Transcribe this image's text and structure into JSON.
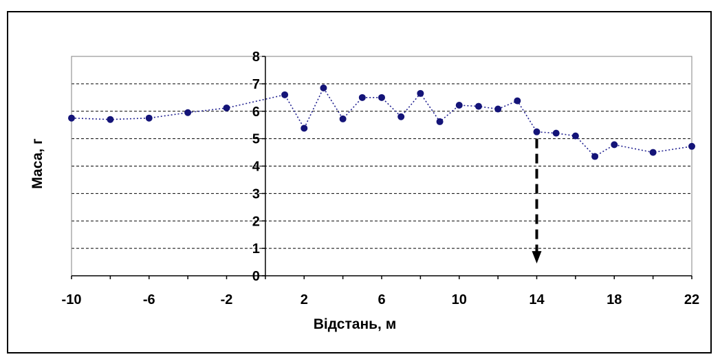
{
  "chart_data": {
    "type": "line",
    "title": "",
    "xlabel": "Відстань, м",
    "ylabel": "Маса, г",
    "xlim": [
      -10,
      22
    ],
    "ylim": [
      0,
      8
    ],
    "x_ticks": [
      -10,
      -6,
      -2,
      2,
      6,
      10,
      14,
      18,
      22
    ],
    "y_ticks": [
      0,
      1,
      2,
      3,
      4,
      5,
      6,
      7,
      8
    ],
    "grid": "horizontal dashed",
    "legend": "none",
    "colors": {
      "series": "#1f1f8f",
      "marker": "#141478",
      "grid": "#000000",
      "arrow": "#000000"
    },
    "series": [
      {
        "x": [
          -10,
          -8,
          -6,
          -4,
          -2,
          1,
          2,
          3,
          4,
          5,
          6,
          7,
          8,
          9,
          10,
          11,
          12,
          13,
          14,
          15,
          16,
          17,
          18,
          20,
          22
        ],
        "y": [
          5.75,
          5.7,
          5.75,
          5.95,
          6.12,
          6.6,
          5.38,
          6.85,
          5.72,
          6.5,
          6.5,
          5.8,
          6.65,
          5.62,
          6.22,
          6.18,
          6.08,
          6.38,
          5.25,
          5.2,
          5.1,
          4.35,
          4.78,
          4.5,
          4.72
        ]
      }
    ],
    "annotations": [
      {
        "type": "dashed-arrow",
        "x": 14,
        "y_from": 5.0,
        "y_to": 0.6
      }
    ]
  }
}
